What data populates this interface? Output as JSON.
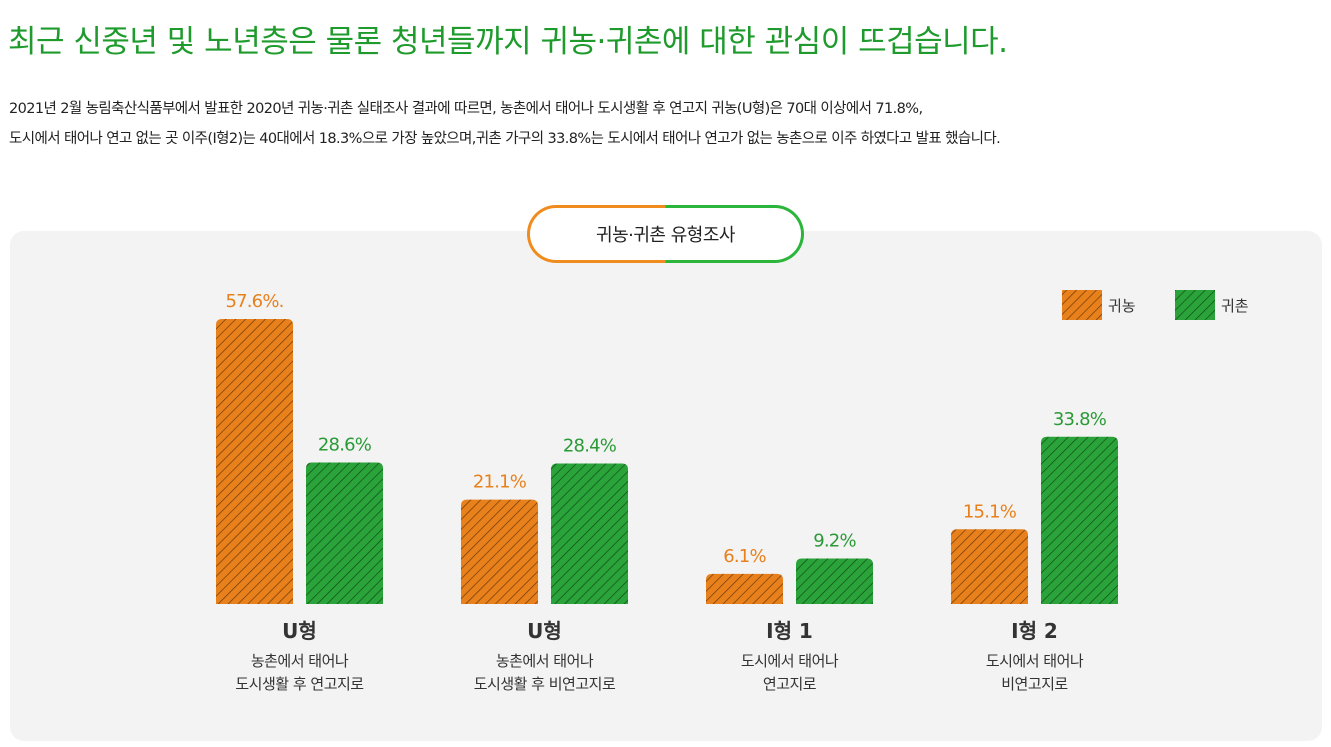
{
  "headline": "최근 신중년 및 노년층은 물론 청년들까지 귀농·귀촌에 대한 관심이 뜨겁습니다.",
  "description": {
    "line1": "2021년 2월 농림축산식품부에서 발표한 2020년 귀농·귀촌 실태조사 결과에 따르면, 농촌에서 태어나 도시생활 후 연고지 귀농(U형)은 70대 이상에서 71.8%,",
    "line2": "도시에서 태어나 연고 없는 곳 이주(I형2)는 40대에서 18.3%으로 가장 높았으며,귀촌 가구의 33.8%는 도시에서 태어나 연고가 없는 농촌으로 이주 하였다고 발표 했습니다."
  },
  "chart_data": {
    "type": "bar",
    "title": "귀농·귀촌 유형조사",
    "categories": [
      "U형",
      "U형",
      "I형 1",
      "I형 2"
    ],
    "category_descriptions": [
      [
        "농촌에서 태어나",
        "도시생활 후 연고지로"
      ],
      [
        "농촌에서 태어나",
        "도시생활 후 비연고지로"
      ],
      [
        "도시에서 태어나",
        "연고지로"
      ],
      [
        "도시에서 태어나",
        "비연고지로"
      ]
    ],
    "series": [
      {
        "name": "귀농",
        "values": [
          57.6,
          21.1,
          6.1,
          15.1
        ],
        "labels": [
          "57.6%.",
          "21.1%",
          "6.1%",
          "15.1%"
        ],
        "color": "#e8801c",
        "label_color": "#e8801c"
      },
      {
        "name": "귀촌",
        "values": [
          28.6,
          28.4,
          9.2,
          33.8
        ],
        "labels": [
          "28.6%",
          "28.4%",
          "9.2%",
          "33.8%"
        ],
        "color": "#2aa33a",
        "label_color": "#2a9a36"
      }
    ],
    "ylim": [
      0,
      60
    ],
    "legend": "top-right",
    "bar_pattern": "diagonal-hatch",
    "grid": false
  }
}
